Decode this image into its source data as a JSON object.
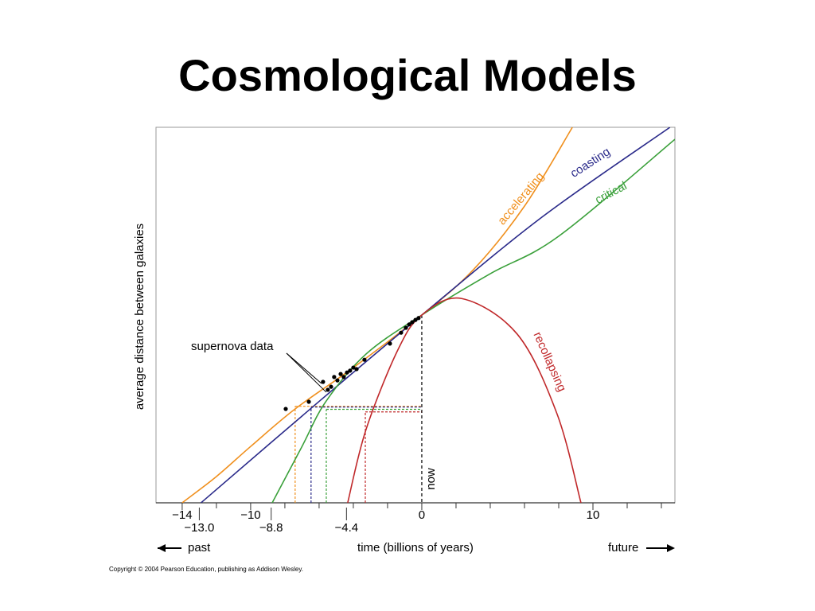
{
  "title": "Cosmological Models",
  "copyright": "Copyright © 2004 Pearson Education, publishing as Addison Wesley.",
  "chart_data": {
    "type": "line",
    "x_label": "time (billions of years)",
    "y_label": "average distance between galaxies",
    "past_label": "past",
    "future_label": "future",
    "now": {
      "label": "now",
      "x": 0
    },
    "xlim": [
      -15.53,
      14.79
    ],
    "ylim": [
      0,
      10
    ],
    "xticks": [
      {
        "value": -14,
        "label": "−14"
      },
      {
        "value": -10,
        "label": "−10"
      },
      0,
      10
    ],
    "xminor": [
      -12,
      -8,
      -6,
      -4,
      -2,
      2,
      4,
      6,
      8,
      12,
      14
    ],
    "start_ticks": [
      {
        "value": -13,
        "label": "−13.0"
      },
      {
        "value": -8.8,
        "label": "−8.8"
      },
      {
        "value": -4.4,
        "label": "−4.4"
      }
    ],
    "series": [
      {
        "name": "accelerating",
        "color": "#f0901e",
        "x": [
          -14,
          -12,
          -10,
          -7.4,
          -4,
          0,
          3,
          6,
          8.8
        ],
        "values": [
          0,
          0.7,
          1.5,
          2.5,
          3.6,
          5,
          6.2,
          7.9,
          10
        ],
        "lookback_x": -7.4,
        "lookback_y": 2.57
      },
      {
        "name": "coasting",
        "color": "#2a2a8a",
        "x": [
          -12.9,
          -6,
          0,
          7,
          14.5
        ],
        "values": [
          0,
          2.7,
          5,
          7.6,
          10
        ],
        "lookback_x": -6.47,
        "lookback_y": 2.55
      },
      {
        "name": "critical",
        "color": "#3aa03a",
        "x": [
          -8.74,
          -7,
          -5.6,
          -3.26,
          0,
          4,
          8,
          14.79
        ],
        "values": [
          0,
          1.5,
          2.7,
          3.96,
          5,
          6.1,
          7.1,
          9.68
        ],
        "lookback_x": -5.58,
        "lookback_y": 2.49
      },
      {
        "name": "recollapsing",
        "color": "#c0282a",
        "x": [
          -4.33,
          -3.26,
          -1.4,
          0,
          2.33,
          5.58,
          7.9,
          9.3
        ],
        "values": [
          0,
          1.95,
          4.07,
          5,
          5.44,
          4.49,
          2.37,
          0
        ],
        "lookback_x": -3.3,
        "lookback_y": 2.42
      },
      {
        "name": "supernova data",
        "color": "#000000",
        "mode": "markers",
        "x": [
          -7.95,
          -6.6,
          -5.77,
          -5.49,
          -5.3,
          -5.12,
          -4.93,
          -4.74,
          -4.56,
          -4.37,
          -4.19,
          -4.0,
          -3.81,
          -3.35,
          -1.86,
          -1.21,
          -0.93,
          -0.74,
          -0.56,
          -0.37,
          -0.19
        ],
        "values": [
          2.5,
          2.69,
          3.22,
          3.01,
          3.09,
          3.35,
          3.26,
          3.43,
          3.35,
          3.47,
          3.52,
          3.6,
          3.56,
          3.81,
          4.24,
          4.53,
          4.66,
          4.75,
          4.81,
          4.87,
          4.92
        ]
      }
    ]
  }
}
